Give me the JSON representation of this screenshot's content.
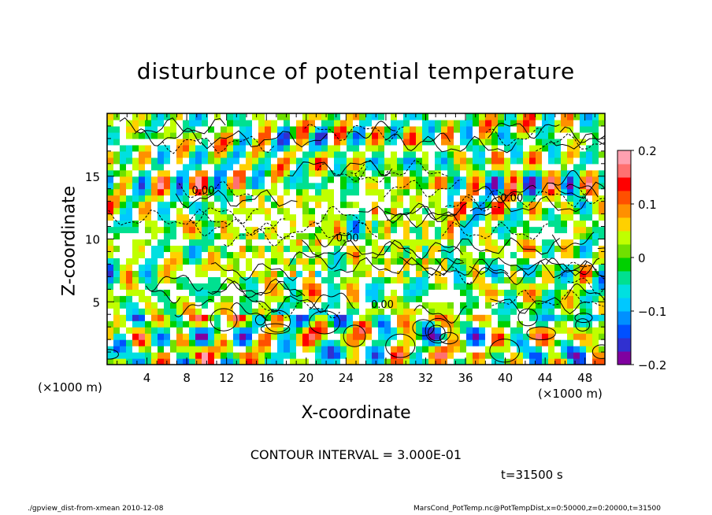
{
  "chart_data": {
    "type": "heatmap",
    "title": "disturbunce of potential temperature",
    "xlabel": "X-coordinate",
    "ylabel": "Z-coordinate",
    "x_unit_left": "(×1000 m)",
    "x_unit_right": "(×1000 m)",
    "xlim": [
      0,
      50
    ],
    "ylim": [
      0,
      20
    ],
    "x_ticks": [
      4,
      8,
      12,
      16,
      20,
      24,
      28,
      32,
      36,
      40,
      44,
      48
    ],
    "y_ticks": [
      5,
      10,
      15
    ],
    "colorbar": {
      "min": -0.2,
      "max": 0.2,
      "tick_values": [
        0.2,
        0.1,
        0,
        -0.1,
        -0.2
      ],
      "tick_labels": [
        "0.2",
        "0.1",
        "0",
        "−0.1",
        "−0.2"
      ],
      "colors": [
        "#8000a0",
        "#3030d0",
        "#0050ff",
        "#0090ff",
        "#00c8ff",
        "#00e0e0",
        "#00e090",
        "#00d000",
        "#70e000",
        "#c0ff00",
        "#ffd000",
        "#ff9000",
        "#ff5000",
        "#ff0000",
        "#ff7070",
        "#ffa0b0"
      ]
    },
    "contour_interval_text": "CONTOUR INTERVAL = 3.000E-01",
    "time_text": "t=31500 s",
    "contour_labels": [
      "0.00",
      "0.00",
      "0.00",
      "0.00"
    ]
  },
  "footer": {
    "left": "./gpview_dist-from-xmean  2010-12-08",
    "right": "MarsCond_PotTemp.nc@PotTempDist,x=0:50000,z=0:20000,t=31500"
  }
}
